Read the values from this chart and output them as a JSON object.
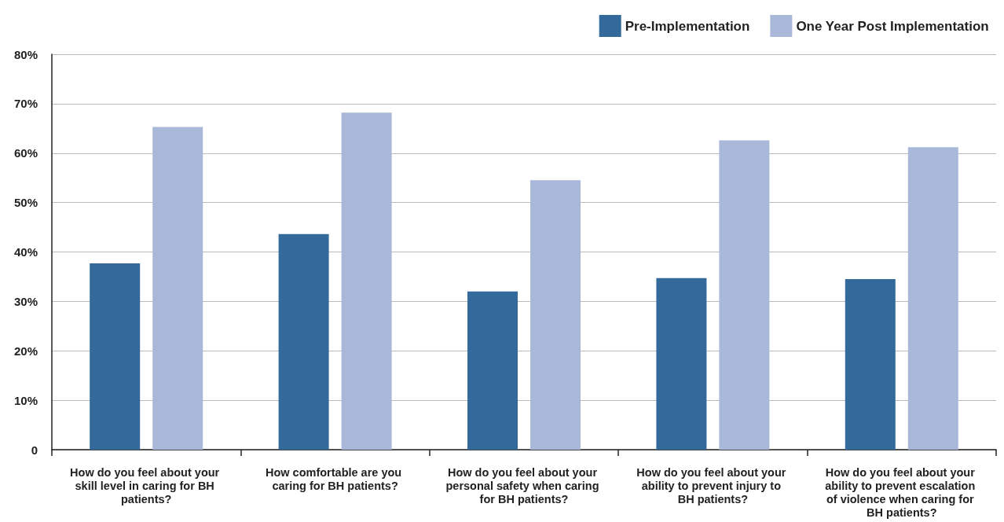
{
  "chart_data": {
    "type": "bar",
    "categories": [
      "How do you feel about your skill level in caring for BH patients?",
      "How comfortable are you caring for BH patients?",
      "How do you feel about your personal safety when caring for BH patients?",
      "How do you feel about your ability to prevent injury to BH patients?",
      "How do you feel about your ability to prevent escalation of violence when caring for BH patients?"
    ],
    "series": [
      {
        "name": "Pre-Implementation",
        "color": "#336a9b",
        "values": [
          37.7,
          43.6,
          32.0,
          34.7,
          34.5
        ]
      },
      {
        "name": "One Year Post Implementation",
        "color": "#a9b8d8",
        "values": [
          65.3,
          68.2,
          54.5,
          62.6,
          61.2
        ]
      }
    ],
    "ylim": [
      0,
      80
    ],
    "yticks": [
      0,
      {
        "value": 10,
        "label": "10%"
      },
      {
        "value": 20,
        "label": "20%"
      },
      {
        "value": 30,
        "label": "30%"
      },
      {
        "value": 40,
        "label": "40%"
      },
      {
        "value": 50,
        "label": "50%"
      },
      {
        "value": 60,
        "label": "60%"
      },
      {
        "value": 70,
        "label": "70%"
      },
      {
        "value": 80,
        "label": "80%"
      }
    ],
    "grid": "y",
    "legend": "top right"
  }
}
